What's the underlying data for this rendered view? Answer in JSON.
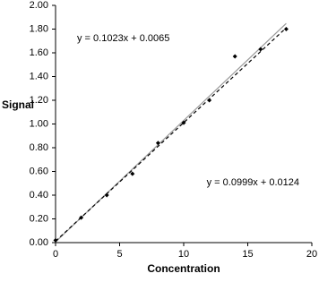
{
  "chart_data": {
    "type": "scatter",
    "x_label": "Concentration",
    "y_label": "Signal",
    "x": [
      0,
      2,
      4,
      6,
      8,
      10,
      12,
      14,
      16,
      18
    ],
    "series": [
      {
        "color": "#000000",
        "values": [
          0.02,
          0.21,
          0.4,
          0.58,
          0.84,
          1.01,
          1.2,
          1.57,
          1.63,
          1.8
        ]
      }
    ],
    "fits": [
      {
        "label": "y = 0.1023x + 0.0065",
        "slope": 0.1023,
        "intercept": 0.0065,
        "color": "#999999",
        "dashed": false
      },
      {
        "label": "y = 0.0999x + 0.0124",
        "slope": 0.0999,
        "intercept": 0.0124,
        "color": "#000000",
        "dashed": true
      }
    ],
    "xlim": [
      0,
      20
    ],
    "xticks": [
      0,
      5,
      10,
      15,
      20
    ],
    "ylim": [
      0,
      2
    ],
    "yticks": [
      {
        "value": 0,
        "label": "0.00"
      },
      {
        "value": 0.2,
        "label": "0.20"
      },
      {
        "value": 0.4,
        "label": "0.40"
      },
      {
        "value": 0.6,
        "label": "0.60"
      },
      {
        "value": 0.8,
        "label": "0.80"
      },
      {
        "value": 1,
        "label": "1.00"
      },
      {
        "value": 1.2,
        "label": "1.20"
      },
      {
        "value": 1.4,
        "label": "1.40"
      },
      {
        "value": 1.6,
        "label": "1.60"
      },
      {
        "value": 1.8,
        "label": "1.80"
      },
      {
        "value": 2,
        "label": "2.00"
      }
    ],
    "grid": false
  }
}
